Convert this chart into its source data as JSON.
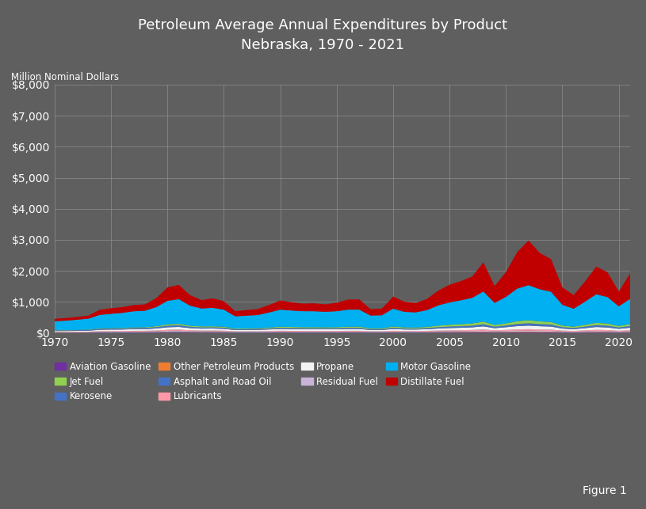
{
  "title_line1": "Petroleum Average Annual Expenditures by Product",
  "title_line2": "Nebraska, 1970 - 2021",
  "ylabel": "Million Nominal Dollars",
  "background_color": "#5f5f5f",
  "plot_bg_color": "#5f5f5f",
  "figure_label": "Figure 1",
  "years": [
    1970,
    1971,
    1972,
    1973,
    1974,
    1975,
    1976,
    1977,
    1978,
    1979,
    1980,
    1981,
    1982,
    1983,
    1984,
    1985,
    1986,
    1987,
    1988,
    1989,
    1990,
    1991,
    1992,
    1993,
    1994,
    1995,
    1996,
    1997,
    1998,
    1999,
    2000,
    2001,
    2002,
    2003,
    2004,
    2005,
    2006,
    2007,
    2008,
    2009,
    2010,
    2011,
    2012,
    2013,
    2014,
    2015,
    2016,
    2017,
    2018,
    2019,
    2020,
    2021
  ],
  "series": {
    "Aviation Gasoline": {
      "color": "#7030a0",
      "values": [
        5,
        5,
        5,
        6,
        8,
        8,
        8,
        9,
        9,
        10,
        12,
        13,
        11,
        10,
        10,
        9,
        7,
        7,
        7,
        8,
        9,
        9,
        9,
        9,
        9,
        9,
        10,
        10,
        8,
        8,
        10,
        9,
        9,
        10,
        11,
        12,
        13,
        14,
        16,
        12,
        13,
        15,
        16,
        14,
        14,
        10,
        9,
        11,
        13,
        12,
        10,
        12
      ]
    },
    "Jet Fuel": {
      "color": "#92d050",
      "values": [
        8,
        8,
        9,
        10,
        16,
        17,
        18,
        20,
        21,
        29,
        42,
        44,
        34,
        30,
        32,
        30,
        20,
        21,
        23,
        28,
        35,
        33,
        31,
        31,
        30,
        31,
        36,
        36,
        25,
        25,
        40,
        34,
        32,
        37,
        48,
        56,
        62,
        68,
        85,
        54,
        66,
        88,
        95,
        86,
        80,
        50,
        42,
        56,
        72,
        67,
        48,
        62
      ]
    },
    "Kerosene": {
      "color": "#4472c4",
      "values": [
        4,
        4,
        4,
        5,
        8,
        9,
        9,
        10,
        10,
        13,
        18,
        19,
        15,
        13,
        13,
        12,
        8,
        8,
        8,
        9,
        10,
        10,
        9,
        9,
        9,
        9,
        9,
        9,
        7,
        7,
        9,
        8,
        8,
        8,
        9,
        9,
        9,
        9,
        10,
        8,
        9,
        10,
        10,
        9,
        9,
        7,
        5,
        6,
        8,
        7,
        5,
        7
      ]
    },
    "Other Petroleum Products": {
      "color": "#ed7d31",
      "values": [
        4,
        4,
        4,
        5,
        7,
        7,
        7,
        8,
        8,
        9,
        12,
        13,
        10,
        9,
        9,
        9,
        6,
        6,
        6,
        7,
        9,
        8,
        8,
        8,
        8,
        8,
        9,
        9,
        7,
        7,
        9,
        8,
        8,
        9,
        10,
        11,
        12,
        13,
        15,
        11,
        13,
        15,
        16,
        15,
        14,
        10,
        9,
        11,
        14,
        12,
        10,
        13
      ]
    },
    "Asphalt and Road Oil": {
      "color": "#4472c4",
      "values": [
        20,
        21,
        23,
        24,
        30,
        32,
        34,
        36,
        38,
        43,
        52,
        55,
        44,
        39,
        40,
        38,
        27,
        28,
        30,
        34,
        38,
        36,
        35,
        35,
        34,
        35,
        38,
        38,
        28,
        28,
        40,
        34,
        32,
        36,
        45,
        49,
        52,
        57,
        68,
        49,
        58,
        71,
        77,
        70,
        67,
        46,
        39,
        50,
        63,
        58,
        43,
        55
      ]
    },
    "Lubricants": {
      "color": "#ff99aa",
      "values": [
        12,
        12,
        13,
        14,
        19,
        20,
        21,
        23,
        23,
        26,
        32,
        34,
        27,
        24,
        25,
        23,
        17,
        17,
        18,
        20,
        23,
        22,
        22,
        21,
        21,
        22,
        23,
        23,
        17,
        17,
        23,
        20,
        19,
        22,
        26,
        29,
        31,
        34,
        40,
        29,
        35,
        42,
        46,
        42,
        40,
        27,
        23,
        30,
        38,
        35,
        25,
        32
      ]
    },
    "Propane": {
      "color": "#f2f2f2",
      "values": [
        25,
        27,
        29,
        31,
        44,
        47,
        49,
        53,
        54,
        65,
        82,
        87,
        71,
        63,
        65,
        60,
        43,
        44,
        46,
        52,
        59,
        57,
        55,
        55,
        54,
        55,
        59,
        59,
        44,
        44,
        59,
        51,
        50,
        55,
        66,
        74,
        79,
        85,
        101,
        72,
        88,
        106,
        114,
        105,
        99,
        67,
        57,
        74,
        91,
        85,
        64,
        80
      ]
    },
    "Residual Fuel": {
      "color": "#c9b3d9",
      "values": [
        10,
        10,
        10,
        11,
        15,
        16,
        16,
        18,
        18,
        21,
        26,
        28,
        22,
        20,
        20,
        18,
        13,
        14,
        14,
        16,
        18,
        17,
        16,
        16,
        16,
        16,
        17,
        17,
        13,
        13,
        17,
        15,
        15,
        17,
        19,
        22,
        23,
        25,
        30,
        22,
        26,
        31,
        34,
        31,
        29,
        20,
        17,
        22,
        27,
        25,
        19,
        24
      ]
    },
    "Motor Gasoline": {
      "color": "#00b0f0",
      "values": [
        290,
        305,
        330,
        355,
        435,
        460,
        485,
        520,
        535,
        615,
        760,
        795,
        645,
        580,
        595,
        550,
        395,
        410,
        425,
        485,
        550,
        530,
        515,
        515,
        500,
        515,
        550,
        550,
        410,
        420,
        575,
        500,
        490,
        540,
        655,
        720,
        770,
        825,
        970,
        710,
        855,
        1050,
        1130,
        1035,
        975,
        670,
        580,
        745,
        920,
        855,
        635,
        810
      ]
    },
    "Distillate Fuel": {
      "color": "#c00000",
      "values": [
        80,
        85,
        90,
        100,
        165,
        180,
        185,
        200,
        205,
        290,
        430,
        460,
        340,
        270,
        305,
        275,
        165,
        180,
        195,
        240,
        295,
        265,
        245,
        255,
        240,
        275,
        325,
        330,
        205,
        215,
        390,
        325,
        300,
        360,
        475,
        570,
        620,
        685,
        940,
        545,
        800,
        1180,
        1440,
        1170,
        1050,
        560,
        440,
        650,
        890,
        800,
        475,
        820
      ]
    }
  },
  "ylim": [
    0,
    8000
  ],
  "yticks": [
    0,
    1000,
    2000,
    3000,
    4000,
    5000,
    6000,
    7000,
    8000
  ],
  "ytick_labels": [
    "$0",
    "$1,000",
    "$2,000",
    "$3,000",
    "$4,000",
    "$5,000",
    "$6,000",
    "$7,000",
    "$8,000"
  ],
  "xticks": [
    1970,
    1975,
    1980,
    1985,
    1990,
    1995,
    2000,
    2005,
    2010,
    2015,
    2020
  ],
  "grid_color": "#909090",
  "text_color": "#ffffff",
  "legend_order": [
    "Aviation Gasoline",
    "Jet Fuel",
    "Kerosene",
    "Other Petroleum Products",
    "Asphalt and Road Oil",
    "Lubricants",
    "Propane",
    "Residual Fuel",
    "Motor Gasoline",
    "Distillate Fuel"
  ],
  "stack_order": [
    "Aviation Gasoline",
    "Kerosene",
    "Other Petroleum Products",
    "Residual Fuel",
    "Lubricants",
    "Propane",
    "Asphalt and Road Oil",
    "Jet Fuel",
    "Motor Gasoline",
    "Distillate Fuel"
  ]
}
